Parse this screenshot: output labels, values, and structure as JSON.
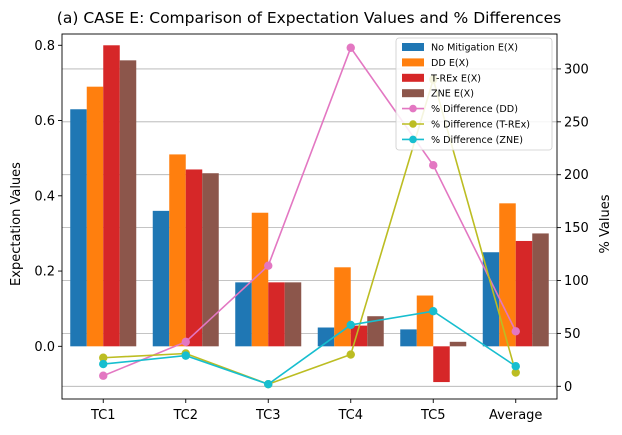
{
  "chart_data": {
    "type": "bar",
    "title": "(a) CASE E: Comparison of Expectation Values and % Differences",
    "xlabel": "",
    "ylabel": "Expectation Values",
    "y2label": "% Values",
    "categories": [
      "TC1",
      "TC2",
      "TC3",
      "TC4",
      "TC5",
      "Average"
    ],
    "ylim": [
      -0.14,
      0.83
    ],
    "y2lim": [
      -12,
      333
    ],
    "yticks": [
      "0.0",
      "0.2",
      "0.4",
      "0.6",
      "0.8"
    ],
    "y2ticks": [
      "0",
      "50",
      "100",
      "150",
      "200",
      "250",
      "300"
    ],
    "grid": true,
    "legend_position": "top-right",
    "bar_series": [
      {
        "name": "No Mitigation E(X)",
        "color": "#1f77b4",
        "values": [
          0.63,
          0.36,
          0.17,
          0.05,
          0.045,
          0.25
        ]
      },
      {
        "name": "DD E(X)",
        "color": "#ff7f0e",
        "values": [
          0.69,
          0.51,
          0.355,
          0.21,
          0.135,
          0.38
        ]
      },
      {
        "name": "T-REx E(X)",
        "color": "#d62728",
        "values": [
          0.8,
          0.47,
          0.17,
          0.055,
          -0.095,
          0.28
        ]
      },
      {
        "name": "ZNE E(X)",
        "color": "#8c564b",
        "values": [
          0.76,
          0.46,
          0.17,
          0.08,
          0.012,
          0.3
        ]
      }
    ],
    "line_series": [
      {
        "name": "% Difference (DD)",
        "color": "#e377c2",
        "values": [
          10,
          42,
          114,
          320,
          209,
          52
        ]
      },
      {
        "name": "% Difference (T-REx)",
        "color": "#bcbd22",
        "values": [
          27,
          31,
          2,
          30,
          290,
          13
        ]
      },
      {
        "name": "% Difference (ZNE)",
        "color": "#17becf",
        "values": [
          21,
          29,
          2,
          58,
          71,
          19
        ]
      }
    ]
  }
}
